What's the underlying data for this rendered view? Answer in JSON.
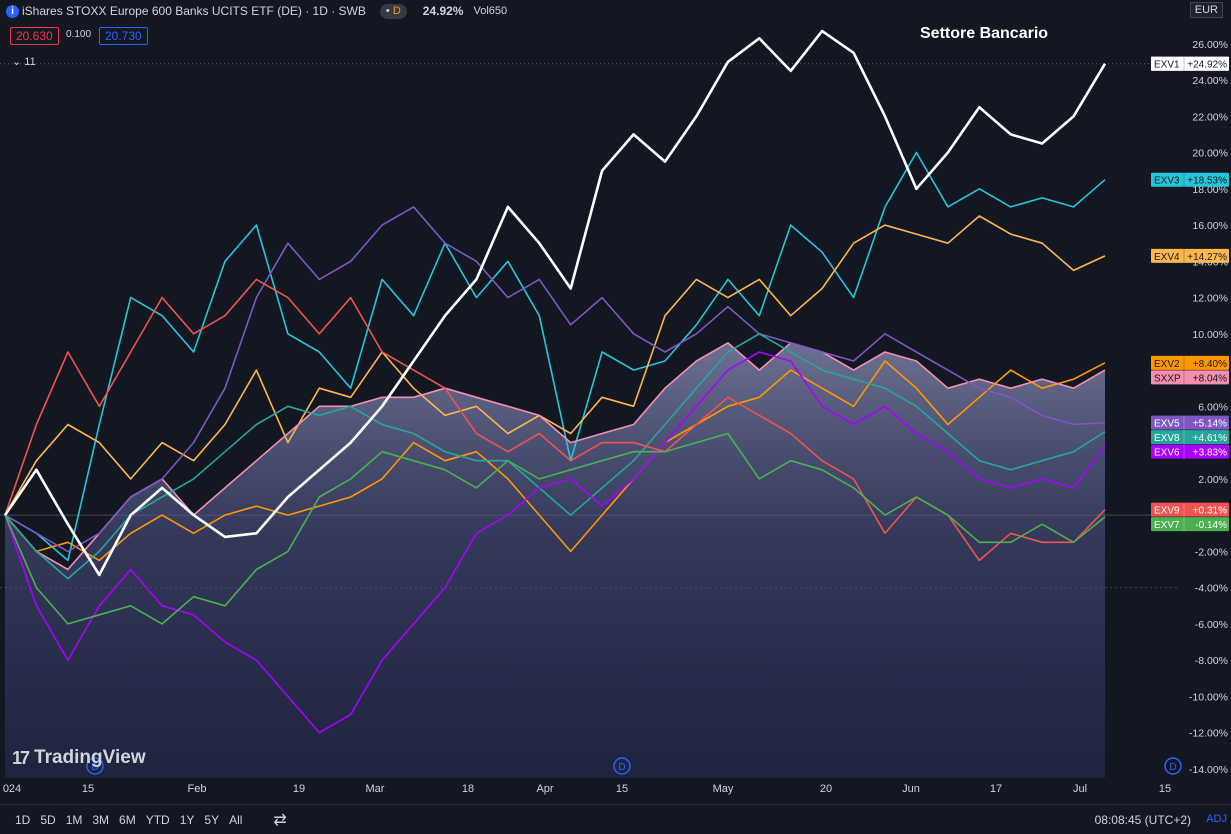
{
  "header": {
    "symbol": "iShares STOXX Europe 600 Banks UCITS ETF (DE) · 1D · SWB",
    "badge_letter": "D",
    "change_pct": "24.92%",
    "vol_label": "Vol",
    "vol_value": "650",
    "bid": "20.630",
    "spread": "0.100",
    "ask": "20.730",
    "collapse_count": "11",
    "currency": "EUR",
    "annotation_title": "Settore Bancario",
    "info_icon": "info-icon",
    "collapse_icon": "chevron-down-icon"
  },
  "branding": {
    "logo_mark": "17",
    "logo_text": "TradingView"
  },
  "footer": {
    "ranges": [
      "1D",
      "5D",
      "1M",
      "3M",
      "6M",
      "YTD",
      "1Y",
      "5Y",
      "All"
    ],
    "compare_icon": "compare-icon",
    "time": "08:08:45 (UTC+2)",
    "adj": "ADJ"
  },
  "chart_data": {
    "type": "line",
    "x_ticks": [
      "024",
      "15",
      "Feb",
      "19",
      "Mar",
      "18",
      "Apr",
      "15",
      "May",
      "20",
      "Jun",
      "17",
      "Jul",
      "15"
    ],
    "y_ticks": [
      "26.00%",
      "24.00%",
      "22.00%",
      "20.00%",
      "18.00%",
      "16.00%",
      "14.00%",
      "12.00%",
      "10.00%",
      "6.00%",
      "2.00%",
      "-2.00%",
      "-4.00%",
      "-6.00%",
      "-8.00%",
      "-10.00%",
      "-12.00%",
      "-14.00%"
    ],
    "ylim": [
      -14.5,
      27.2
    ],
    "dividend_marker": "D",
    "colors": {
      "EXV1": "#ffffff",
      "EXV3": "#26c6da",
      "EXV4": "#ffb74d",
      "EXV2": "#ff9800",
      "SXXP": "#f48fb1",
      "EXV5": "#7e57c2",
      "EXV8": "#26a69a",
      "EXV6": "#aa00ff",
      "EXV9": "#ef5350",
      "EXV7": "#4caf50"
    },
    "series": [
      {
        "name": "EXV1",
        "last": "+24.92%",
        "values": [
          0,
          2.5,
          -0.5,
          -3.3,
          0,
          1.5,
          0,
          -1.2,
          -1,
          1,
          2.5,
          4,
          6,
          8.5,
          11,
          13,
          17,
          15,
          12.5,
          19,
          21,
          19.5,
          22,
          25,
          26.3,
          24.5,
          26.7,
          25.5,
          22,
          18,
          20,
          22.5,
          21,
          20.5,
          22,
          24.9
        ]
      },
      {
        "name": "EXV3",
        "last": "+18.53%",
        "values": [
          0,
          -1,
          -2.5,
          5,
          12,
          11,
          9,
          14,
          16,
          10,
          9,
          7,
          13,
          11,
          15,
          12,
          14,
          11,
          3,
          9,
          8,
          8.5,
          10.5,
          13,
          11,
          16,
          14.5,
          12,
          17,
          20,
          17,
          18,
          17,
          17.5,
          17,
          18.5
        ]
      },
      {
        "name": "EXV4",
        "last": "+14.27%",
        "values": [
          0,
          3,
          5,
          4,
          2,
          4,
          3,
          5,
          8,
          4,
          7,
          6.5,
          9,
          7,
          5.5,
          6,
          4.5,
          5.5,
          4.5,
          6.5,
          6,
          11,
          13,
          12,
          13,
          11,
          12.5,
          15,
          16,
          15.5,
          15,
          16.5,
          15.5,
          15,
          13.5,
          14.3
        ]
      },
      {
        "name": "EXV2",
        "last": "+8.40%",
        "values": [
          0,
          -2,
          -1.5,
          -2.5,
          -1,
          0,
          -1,
          0,
          0.5,
          0,
          0.5,
          1,
          2,
          4,
          3,
          3.5,
          2,
          0,
          -2,
          0,
          2,
          4,
          5,
          6,
          6.5,
          8,
          7,
          6,
          8.5,
          7,
          5,
          6.5,
          8,
          7,
          7.5,
          8.4
        ]
      },
      {
        "name": "SXXP",
        "last": "+8.04%",
        "values": [
          0,
          -2,
          -3,
          -1,
          1,
          2,
          0,
          1.5,
          3,
          4.5,
          6,
          6,
          6.5,
          6.5,
          7,
          6.5,
          6,
          5.5,
          4,
          4.5,
          5,
          7,
          8.5,
          9.5,
          8,
          9.5,
          9,
          8,
          9,
          8.5,
          7,
          7.5,
          7,
          7.5,
          7,
          8
        ]
      },
      {
        "name": "EXV5",
        "last": "+5.14%",
        "values": [
          0,
          -1,
          -2,
          -1,
          1,
          2,
          4,
          7,
          12,
          15,
          13,
          14,
          16,
          17,
          15,
          14,
          12,
          13,
          10.5,
          12,
          10,
          9,
          10,
          11.5,
          10,
          9.5,
          9,
          8.5,
          10,
          9,
          8,
          7,
          6.5,
          5.5,
          5,
          5.1
        ]
      },
      {
        "name": "EXV8",
        "last": "+4.61%",
        "values": [
          0,
          -2,
          -3.5,
          -2,
          0,
          1,
          2,
          3.5,
          5,
          6,
          5.5,
          6,
          5,
          4.5,
          3.5,
          3,
          3,
          1.5,
          0,
          1.5,
          3,
          5,
          7,
          9,
          10,
          9,
          8,
          7.5,
          7,
          6,
          4.5,
          3,
          2.5,
          3,
          3.5,
          4.6
        ]
      },
      {
        "name": "EXV6",
        "last": "+3.83%",
        "values": [
          0,
          -5,
          -8,
          -5,
          -3,
          -5,
          -5.5,
          -7,
          -8,
          -10,
          -12,
          -11,
          -8,
          -6,
          -4,
          -1,
          0,
          1.5,
          2,
          0.5,
          2,
          4,
          6,
          8,
          9,
          8.5,
          6,
          5,
          6,
          4.5,
          3.5,
          2,
          1.5,
          2,
          1.5,
          3.8
        ]
      },
      {
        "name": "EXV9",
        "last": "+0.31%",
        "values": [
          0,
          5,
          9,
          6,
          9,
          12,
          10,
          11,
          13,
          12,
          10,
          12,
          9,
          8,
          7,
          4.5,
          3.5,
          4.5,
          3,
          4,
          4,
          3.5,
          5,
          6.5,
          5.5,
          4.5,
          3,
          2,
          -1,
          1,
          0,
          -2.5,
          -1,
          -1.5,
          -1.5,
          0.3
        ]
      },
      {
        "name": "EXV7",
        "last": "-0.14%",
        "values": [
          0,
          -4,
          -6,
          -5.5,
          -5,
          -6,
          -4.5,
          -5,
          -3,
          -2,
          1,
          2,
          3.5,
          3,
          2.5,
          1.5,
          3,
          2,
          2.5,
          3,
          3.5,
          3.5,
          4,
          4.5,
          2,
          3,
          2.5,
          1.5,
          0,
          1,
          0,
          -1.5,
          -1.5,
          -0.5,
          -1.5,
          -0.1
        ]
      }
    ]
  }
}
